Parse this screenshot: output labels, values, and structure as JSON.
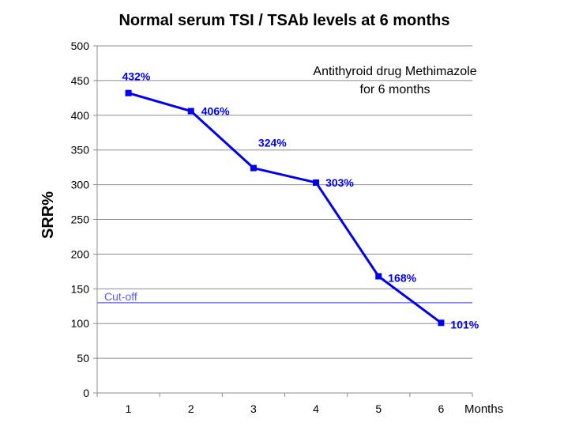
{
  "chart_data": {
    "type": "line",
    "title": "Normal serum TSI / TSAb levels at 6 months",
    "xlabel": "Months",
    "ylabel": "SRR%",
    "categories": [
      "1",
      "2",
      "3",
      "4",
      "5",
      "6"
    ],
    "series": [
      {
        "values": [
          432,
          406,
          324,
          303,
          168,
          101
        ],
        "data_labels": [
          "432%",
          "406%",
          "324%",
          "303%",
          "168%",
          "101%"
        ]
      }
    ],
    "ylim": [
      0,
      500
    ],
    "yticks": [
      "0",
      "50",
      "100",
      "150",
      "200",
      "250",
      "300",
      "350",
      "400",
      "450",
      "500"
    ],
    "ytick_values": [
      0,
      50,
      100,
      150,
      200,
      250,
      300,
      350,
      400,
      450,
      500
    ],
    "grid": true,
    "reference_line": {
      "label": "Cut-off",
      "value": 130
    },
    "annotation": {
      "line1": "Antithyroid drug Methimazole",
      "line2": "for 6 months"
    }
  },
  "colors": {
    "series": "#0000ee",
    "cutoff": "#5a5af0",
    "grid": "#8c8c8c",
    "axis": "#8c8c8c"
  }
}
